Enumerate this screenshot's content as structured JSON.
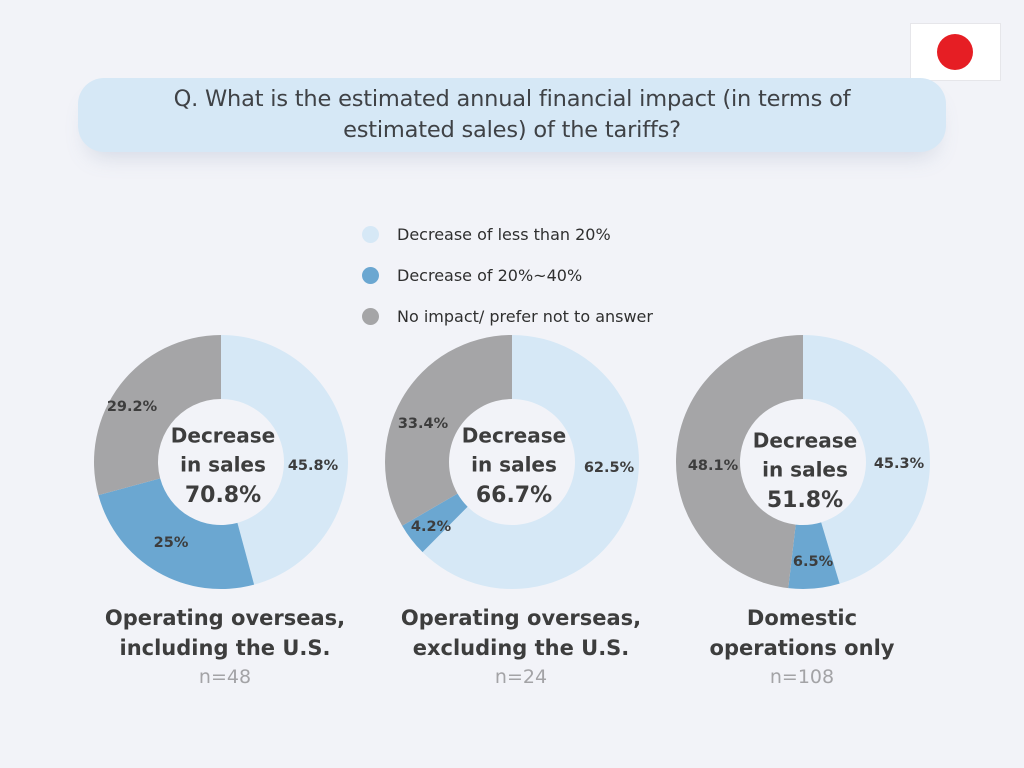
{
  "question": "Q. What is the estimated annual financial impact (in terms of estimated sales) of the tariffs?",
  "flag_icon": "japan-flag-icon",
  "colors": {
    "light_blue": "#d6e8f6",
    "mid_blue": "#6ba7d1",
    "gray": "#a5a5a7",
    "flag_red": "#e61e24",
    "background": "#f2f3f8"
  },
  "chart_data": [
    {
      "type": "pie",
      "donut": true,
      "series": [
        "Decrease of less than 20%",
        "Decrease of 20%~40%",
        "No impact/ prefer not to answer"
      ],
      "values": [
        45.8,
        25,
        29.2
      ],
      "labels": [
        "45.8%",
        "25%",
        "29.2%"
      ],
      "center_text": [
        "Decrease",
        "in sales",
        "70.8%"
      ],
      "title_lines": [
        "Operating overseas,",
        "including the U.S."
      ],
      "n": "n=48"
    },
    {
      "type": "pie",
      "donut": true,
      "series": [
        "Decrease of less than 20%",
        "Decrease of 20%~40%",
        "No impact/ prefer not to answer"
      ],
      "values": [
        62.5,
        4.2,
        33.4
      ],
      "labels": [
        "62.5%",
        "4.2%",
        "33.4%"
      ],
      "center_text": [
        "Decrease",
        "in sales",
        "66.7%"
      ],
      "title_lines": [
        "Operating overseas,",
        "excluding the U.S."
      ],
      "n": "n=24"
    },
    {
      "type": "pie",
      "donut": true,
      "series": [
        "Decrease of less than 20%",
        "Decrease of 20%~40%",
        "No impact/ prefer not to answer"
      ],
      "values": [
        45.3,
        6.5,
        48.1
      ],
      "labels": [
        "45.3%",
        "6.5%",
        "48.1%"
      ],
      "center_text": [
        "Decrease",
        "in sales",
        "51.8%"
      ],
      "title_lines": [
        "Domestic",
        "operations only"
      ],
      "n": "n=108"
    }
  ],
  "legend": [
    {
      "label": "Decrease of less than 20%",
      "color": "#d6e8f6"
    },
    {
      "label": "Decrease of 20%~40%",
      "color": "#6ba7d1"
    },
    {
      "label": "No impact/ prefer not to answer",
      "color": "#a5a5a7"
    }
  ]
}
